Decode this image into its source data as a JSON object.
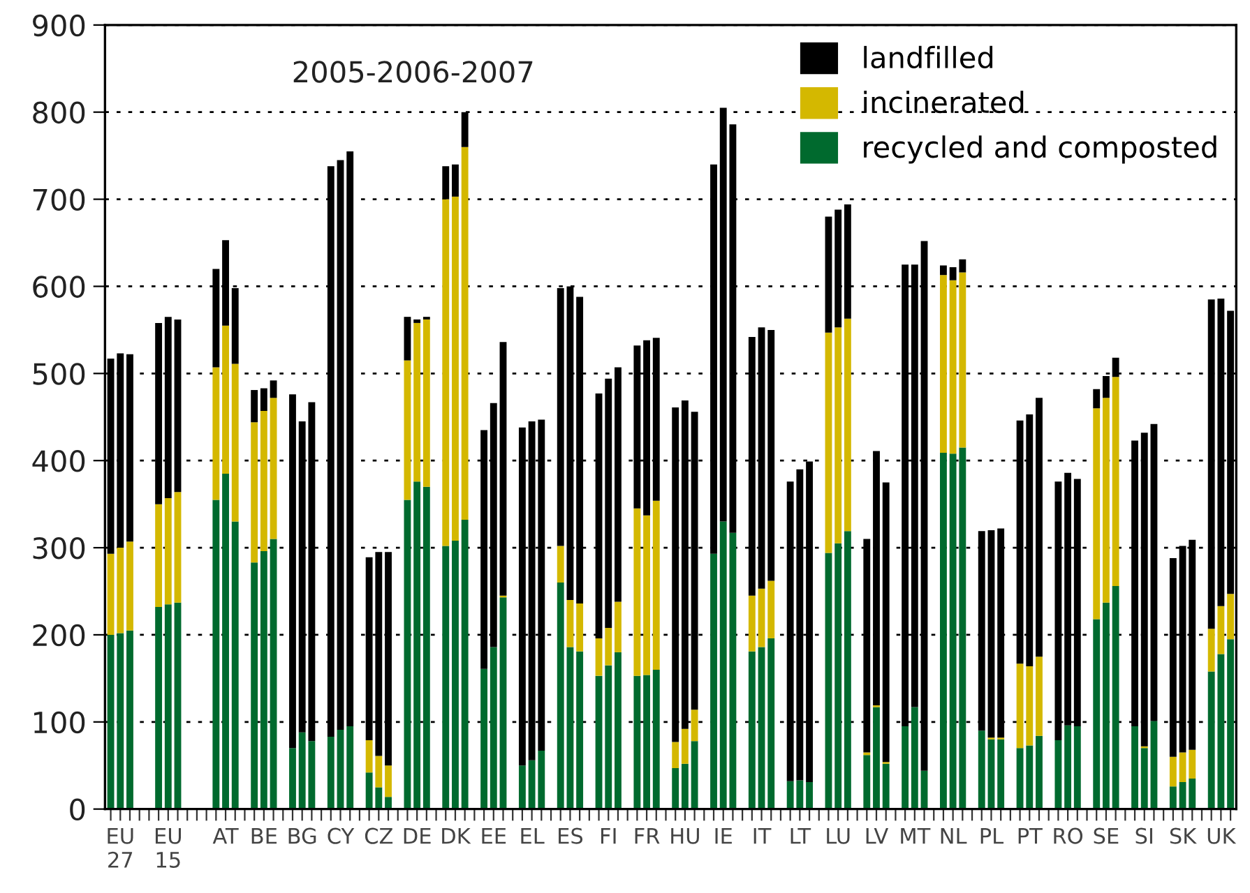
{
  "chart_data": {
    "type": "bar",
    "stacked": true,
    "categories": [
      null,
      "EU\n27",
      null,
      null,
      null,
      null,
      "EU\n15",
      null,
      null,
      null,
      null,
      null,
      "AT",
      null,
      null,
      null,
      "BE",
      null,
      null,
      null,
      "BG",
      null,
      null,
      null,
      "CY",
      null,
      null,
      null,
      "CZ",
      null,
      null,
      null,
      "DE",
      null,
      null,
      null,
      "DK",
      null,
      null,
      null,
      "EE",
      null,
      null,
      null,
      "EL",
      null,
      null,
      null,
      "ES",
      null,
      null,
      null,
      "FI",
      null,
      null,
      null,
      "FR",
      null,
      null,
      null,
      "HU",
      null,
      null,
      null,
      "IE",
      null,
      null,
      null,
      "IT",
      null,
      null,
      null,
      "LT",
      null,
      null,
      null,
      "LU",
      null,
      null,
      null,
      "LV",
      null,
      null,
      null,
      "MT",
      null,
      null,
      null,
      "NL",
      null,
      null,
      null,
      "PL",
      null,
      null,
      null,
      "PT",
      null,
      null,
      null,
      "RO",
      null,
      null,
      null,
      "SE",
      null,
      null,
      null,
      "SI",
      null,
      null,
      null,
      "SK",
      null,
      null,
      null,
      "UK",
      null
    ],
    "series": [
      {
        "name": "recycled and composted",
        "color": "#006a2e",
        "values": [
          200,
          202,
          205,
          null,
          null,
          232,
          235,
          237,
          null,
          null,
          null,
          355,
          385,
          330,
          null,
          283,
          296,
          310,
          null,
          70,
          88,
          78,
          null,
          83,
          91,
          95,
          null,
          42,
          25,
          14,
          null,
          355,
          376,
          370,
          null,
          302,
          308,
          332,
          null,
          161,
          186,
          243,
          null,
          50,
          56,
          67,
          null,
          260,
          186,
          181,
          null,
          153,
          165,
          180,
          null,
          153,
          154,
          160,
          null,
          47,
          52,
          78,
          null,
          293,
          330,
          317,
          null,
          181,
          186,
          196,
          null,
          32,
          33,
          31,
          null,
          294,
          305,
          319,
          null,
          62,
          117,
          52,
          null,
          95,
          117,
          44,
          null,
          409,
          408,
          415,
          null,
          90,
          80,
          80,
          null,
          70,
          73,
          84,
          null,
          79,
          96,
          95,
          null,
          218,
          237,
          256,
          null,
          95,
          70,
          101,
          null,
          26,
          31,
          35,
          null,
          158,
          178,
          195
        ]
      },
      {
        "name": "incinerated",
        "color": "#d4b800",
        "values": [
          93,
          98,
          102,
          null,
          null,
          118,
          122,
          127,
          null,
          null,
          null,
          152,
          170,
          181,
          null,
          161,
          161,
          162,
          null,
          0,
          0,
          0,
          null,
          0,
          0,
          0,
          null,
          37,
          36,
          36,
          null,
          160,
          182,
          192,
          null,
          398,
          395,
          428,
          null,
          0,
          0,
          2,
          null,
          0,
          0,
          0,
          null,
          42,
          54,
          55,
          null,
          43,
          43,
          58,
          null,
          192,
          183,
          194,
          null,
          30,
          40,
          36,
          null,
          0,
          0,
          0,
          null,
          64,
          67,
          66,
          null,
          0,
          0,
          0,
          null,
          253,
          248,
          244,
          null,
          3,
          2,
          2,
          null,
          0,
          0,
          0,
          null,
          204,
          199,
          201,
          null,
          0,
          2,
          2,
          null,
          97,
          91,
          91,
          null,
          0,
          0,
          0,
          null,
          242,
          235,
          240,
          null,
          0,
          2,
          0,
          null,
          34,
          34,
          33,
          null,
          49,
          55,
          52
        ]
      },
      {
        "name": "landfilled",
        "color": "#000000",
        "values": [
          224,
          223,
          215,
          null,
          null,
          208,
          208,
          198,
          null,
          null,
          null,
          113,
          98,
          87,
          null,
          37,
          26,
          20,
          null,
          406,
          357,
          389,
          null,
          655,
          654,
          660,
          null,
          210,
          234,
          245,
          null,
          50,
          4,
          3,
          null,
          38,
          37,
          40,
          null,
          274,
          280,
          291,
          null,
          388,
          389,
          380,
          null,
          296,
          360,
          352,
          null,
          281,
          286,
          269,
          null,
          187,
          201,
          187,
          null,
          384,
          377,
          342,
          null,
          447,
          475,
          469,
          null,
          297,
          300,
          288,
          null,
          344,
          357,
          368,
          null,
          133,
          135,
          131,
          null,
          245,
          292,
          321,
          null,
          530,
          508,
          608,
          null,
          11,
          15,
          15,
          null,
          229,
          238,
          240,
          null,
          279,
          289,
          297,
          null,
          297,
          290,
          284,
          null,
          22,
          25,
          22,
          null,
          328,
          360,
          341,
          null,
          228,
          237,
          241,
          null,
          378,
          353,
          325
        ]
      }
    ],
    "ylim": [
      0,
      900
    ],
    "yticks": [
      0,
      100,
      200,
      300,
      400,
      500,
      600,
      700,
      800,
      900
    ],
    "grid": "y",
    "legend": "top right",
    "annotations": [
      "2005-2006-2007"
    ]
  }
}
